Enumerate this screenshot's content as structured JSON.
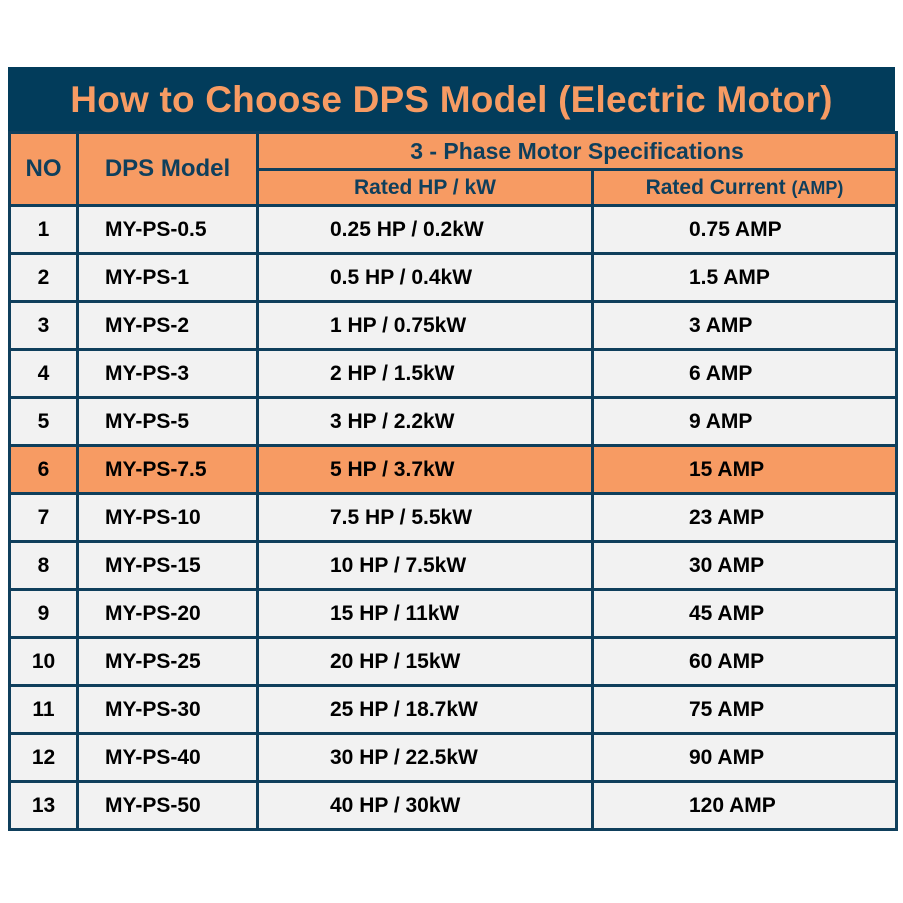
{
  "title": "How to Choose DPS Model (Electric Motor)",
  "headers": {
    "no": "NO",
    "model": "DPS Model",
    "group": "3 - Phase Motor Specifications",
    "hp": "Rated HP / kW",
    "current": "Rated Current",
    "current_unit": "(AMP)"
  },
  "highlight_color": "#f79b63",
  "header_bg": "#023c5b",
  "rows": [
    {
      "no": "1",
      "model": "MY-PS-0.5",
      "hp": "0.25 HP / 0.2kW",
      "amp": "0.75 AMP"
    },
    {
      "no": "2",
      "model": "MY-PS-1",
      "hp": "0.5 HP / 0.4kW",
      "amp": "1.5 AMP"
    },
    {
      "no": "3",
      "model": "MY-PS-2",
      "hp": "1 HP / 0.75kW",
      "amp": "3 AMP"
    },
    {
      "no": "4",
      "model": "MY-PS-3",
      "hp": "2 HP / 1.5kW",
      "amp": "6 AMP"
    },
    {
      "no": "5",
      "model": "MY-PS-5",
      "hp": "3 HP / 2.2kW",
      "amp": "9 AMP"
    },
    {
      "no": "6",
      "model": "MY-PS-7.5",
      "hp": "5 HP / 3.7kW",
      "amp": "15 AMP",
      "highlighted": true
    },
    {
      "no": "7",
      "model": "MY-PS-10",
      "hp": "7.5 HP / 5.5kW",
      "amp": "23 AMP"
    },
    {
      "no": "8",
      "model": "MY-PS-15",
      "hp": "10 HP / 7.5kW",
      "amp": "30 AMP"
    },
    {
      "no": "9",
      "model": "MY-PS-20",
      "hp": "15 HP / 11kW",
      "amp": "45 AMP"
    },
    {
      "no": "10",
      "model": "MY-PS-25",
      "hp": "20 HP / 15kW",
      "amp": "60 AMP"
    },
    {
      "no": "11",
      "model": "MY-PS-30",
      "hp": "25 HP / 18.7kW",
      "amp": "75 AMP"
    },
    {
      "no": "12",
      "model": "MY-PS-40",
      "hp": "30 HP / 22.5kW",
      "amp": "90 AMP"
    },
    {
      "no": "13",
      "model": "MY-PS-50",
      "hp": "40 HP / 30kW",
      "amp": "120 AMP"
    }
  ]
}
